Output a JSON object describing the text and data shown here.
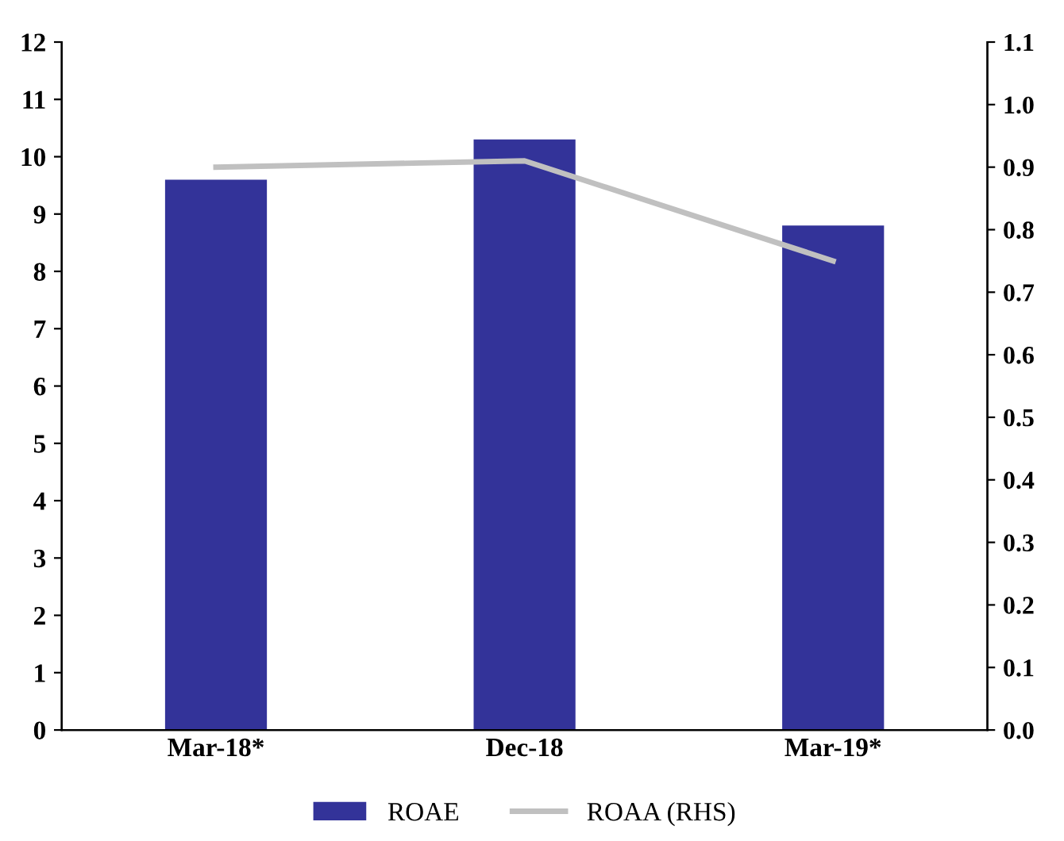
{
  "chart_data": {
    "type": "bar",
    "categories": [
      "Mar-18*",
      "Dec-18",
      "Mar-19*"
    ],
    "series": [
      {
        "name": "ROAE",
        "color": "#333399",
        "values": [
          9.6,
          10.3,
          8.8
        ]
      },
      {
        "name": "ROAA (RHS)",
        "type": "line",
        "axis": "y2",
        "color": "#c0c0c0",
        "values": [
          0.9,
          0.91,
          0.75
        ]
      }
    ],
    "ylim": [
      0,
      12
    ],
    "yticks": [
      0,
      1,
      2,
      3,
      4,
      5,
      6,
      7,
      8,
      9,
      10,
      11,
      12
    ],
    "y2lim": [
      0,
      1.1
    ],
    "y2ticks": [
      {
        "value": 0,
        "label": "0.0"
      },
      0.1,
      0.2,
      0.3,
      0.4,
      0.5,
      0.6,
      0.7,
      0.8,
      0.9,
      {
        "value": 1.0,
        "label": "1.0"
      },
      1.1
    ],
    "grid": false,
    "legend": "bottom",
    "marker": "none"
  }
}
